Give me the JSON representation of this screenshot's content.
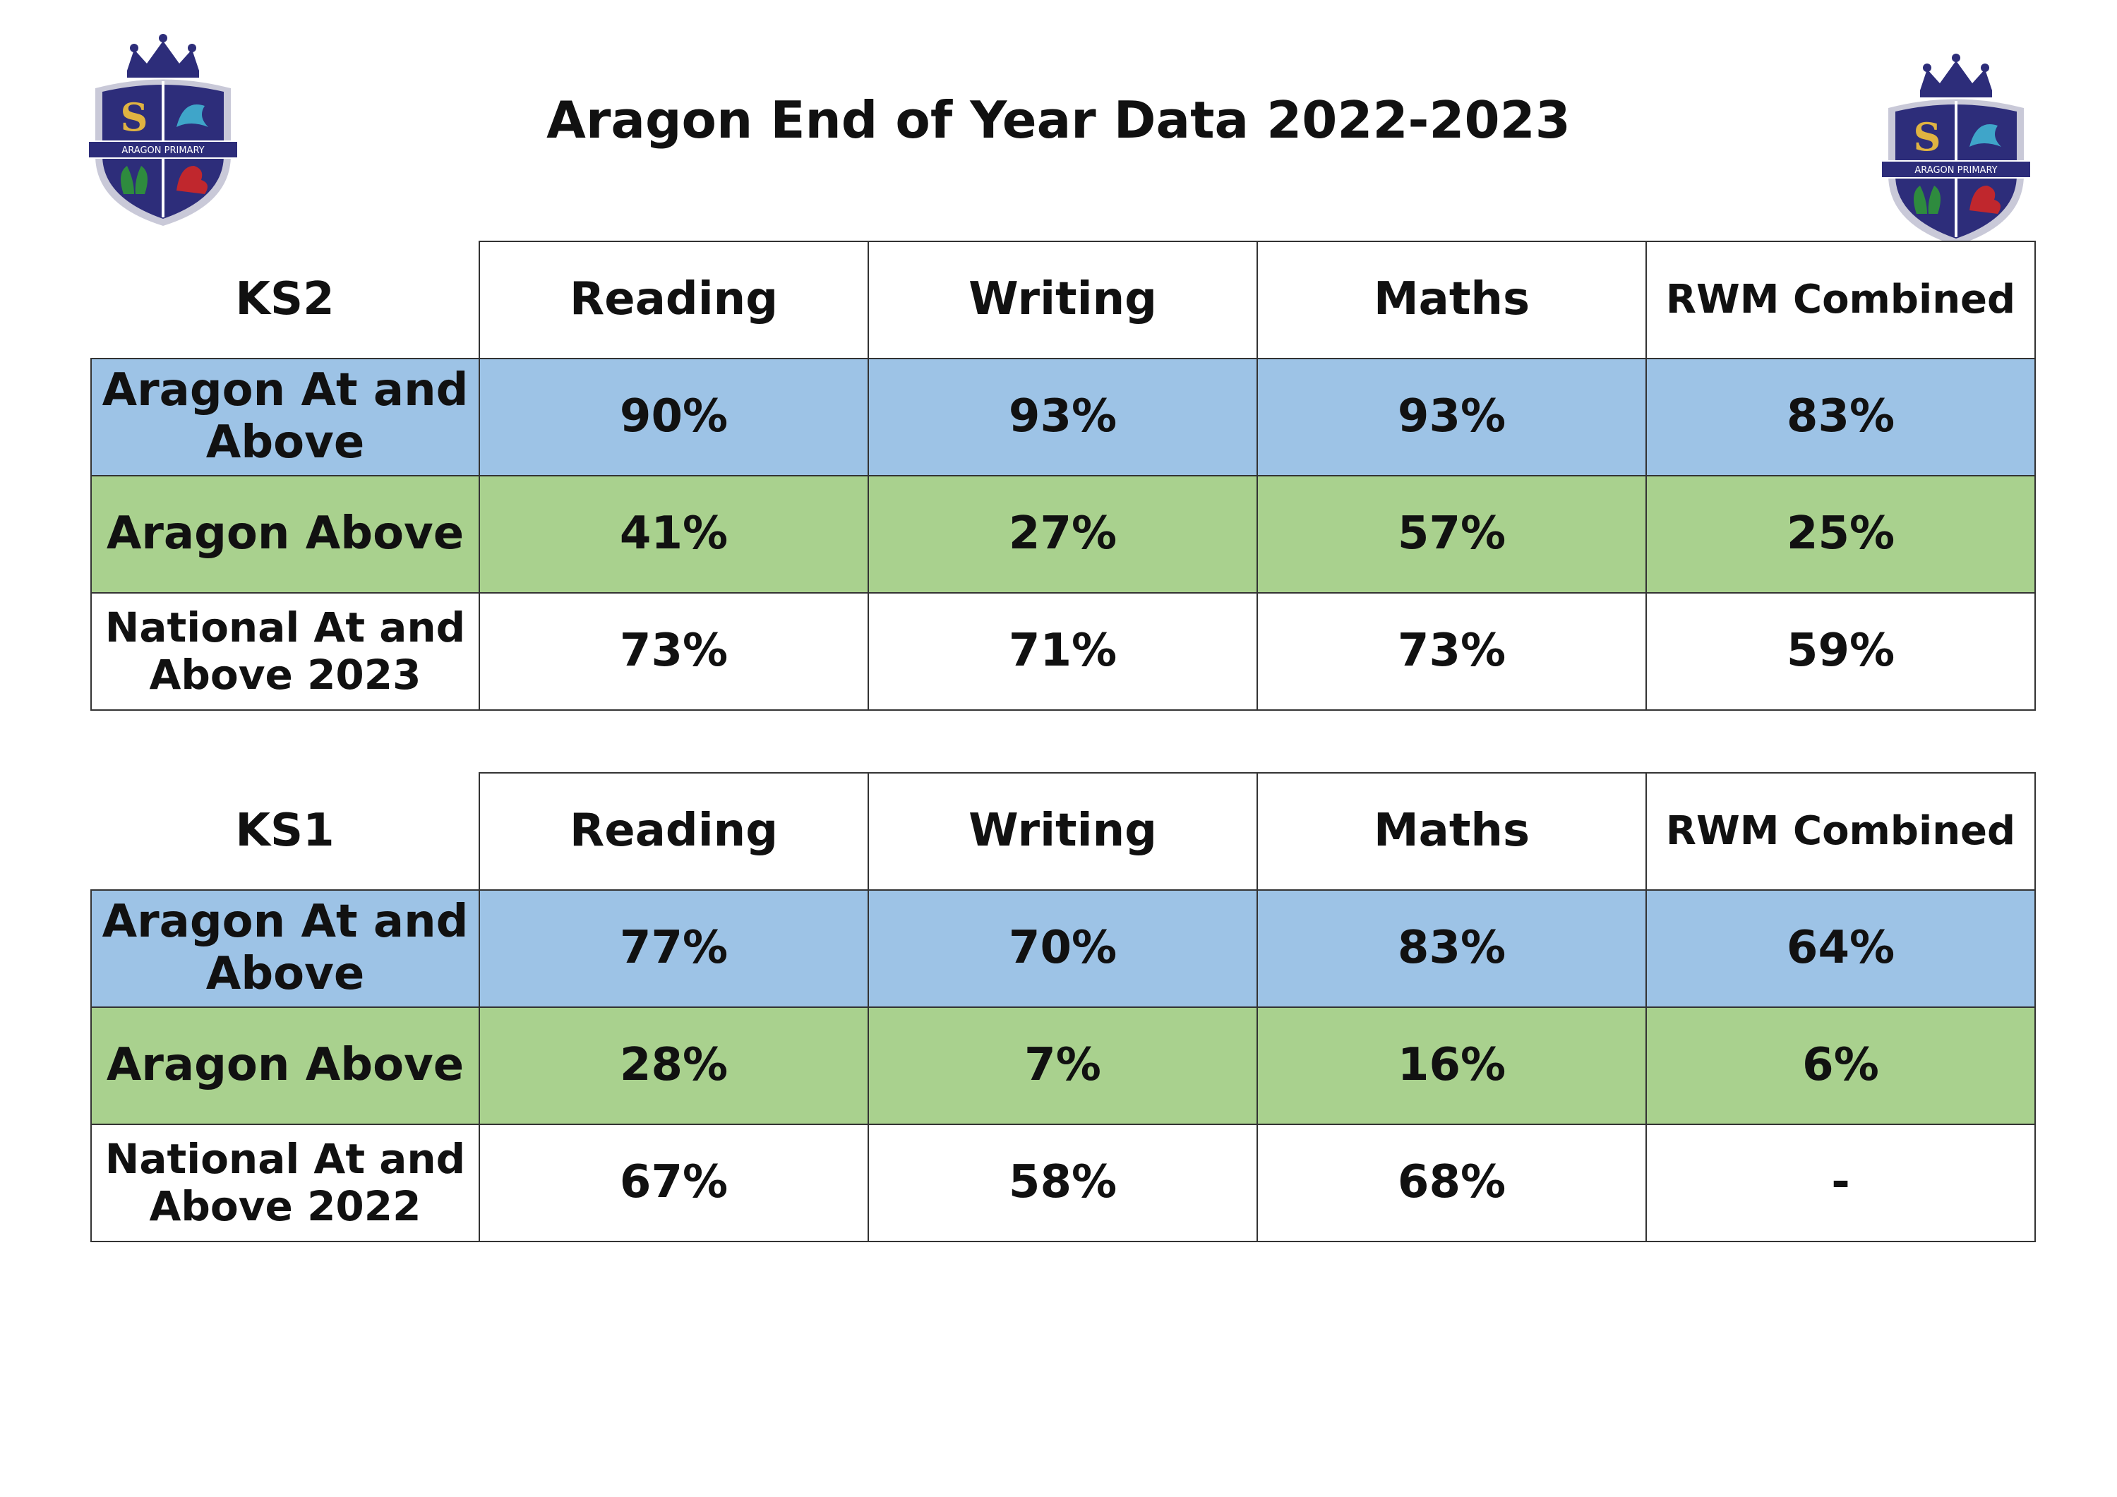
{
  "page_title": "Aragon End of Year Data 2022-2023",
  "crest": {
    "text": "ARAGON PRIMARY",
    "colors": {
      "navy": "#2d2d7a",
      "gold": "#e0b341",
      "teal": "#3fa5c9",
      "green": "#2e8b3e",
      "red": "#c0272d"
    }
  },
  "columns": [
    "Reading",
    "Writing",
    "Maths",
    "RWM Combined"
  ],
  "row_colors": {
    "blue": "#9dc3e6",
    "green": "#a9d18e",
    "white": "#ffffff"
  },
  "tables": [
    {
      "stage": "KS2",
      "rows": [
        {
          "label": "Aragon At and Above",
          "values": [
            "90%",
            "93%",
            "93%",
            "83%"
          ]
        },
        {
          "label": "Aragon Above",
          "values": [
            "41%",
            "27%",
            "57%",
            "25%"
          ]
        },
        {
          "label": "National At and Above 2023",
          "values": [
            "73%",
            "71%",
            "73%",
            "59%"
          ]
        }
      ]
    },
    {
      "stage": "KS1",
      "rows": [
        {
          "label": "Aragon At and Above",
          "values": [
            "77%",
            "70%",
            "83%",
            "64%"
          ]
        },
        {
          "label": "Aragon Above",
          "values": [
            "28%",
            "7%",
            "16%",
            "6%"
          ]
        },
        {
          "label": "National At and Above 2022",
          "values": [
            "67%",
            "58%",
            "68%",
            "-"
          ]
        }
      ]
    }
  ]
}
